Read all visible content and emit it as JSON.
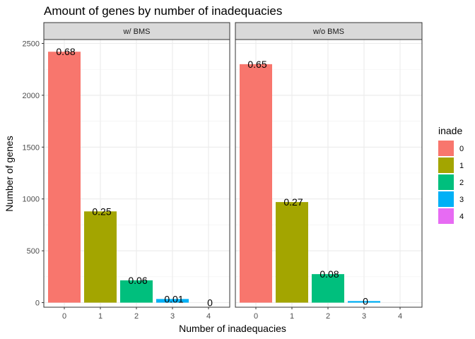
{
  "chart_data": {
    "type": "bar",
    "title": "Amount of genes by number of inadequacies",
    "xlabel": "Number of inadequacies",
    "ylabel": "Number of genes",
    "categories": [
      "0",
      "1",
      "2",
      "3",
      "4"
    ],
    "ylim": [
      -60,
      2500
    ],
    "yticks": [
      0,
      500,
      1000,
      1500,
      2000,
      2500
    ],
    "grid": true,
    "legend": {
      "title": "inade",
      "placement": "right",
      "labels": [
        "0",
        "1",
        "2",
        "3",
        "4"
      ],
      "colors": [
        "#F8766D",
        "#A3A500",
        "#00BF7D",
        "#00B0F6",
        "#E76BF3"
      ]
    },
    "panels": [
      {
        "name": "w/ BMS",
        "values": [
          2420,
          880,
          215,
          35,
          0
        ],
        "labels": [
          "0.68",
          "0.25",
          "0.06",
          "0.01",
          "0"
        ]
      },
      {
        "name": "w/o BMS",
        "values": [
          2300,
          970,
          275,
          15,
          0
        ],
        "labels": [
          "0.65",
          "0.27",
          "0.08",
          "0",
          ""
        ]
      }
    ]
  }
}
